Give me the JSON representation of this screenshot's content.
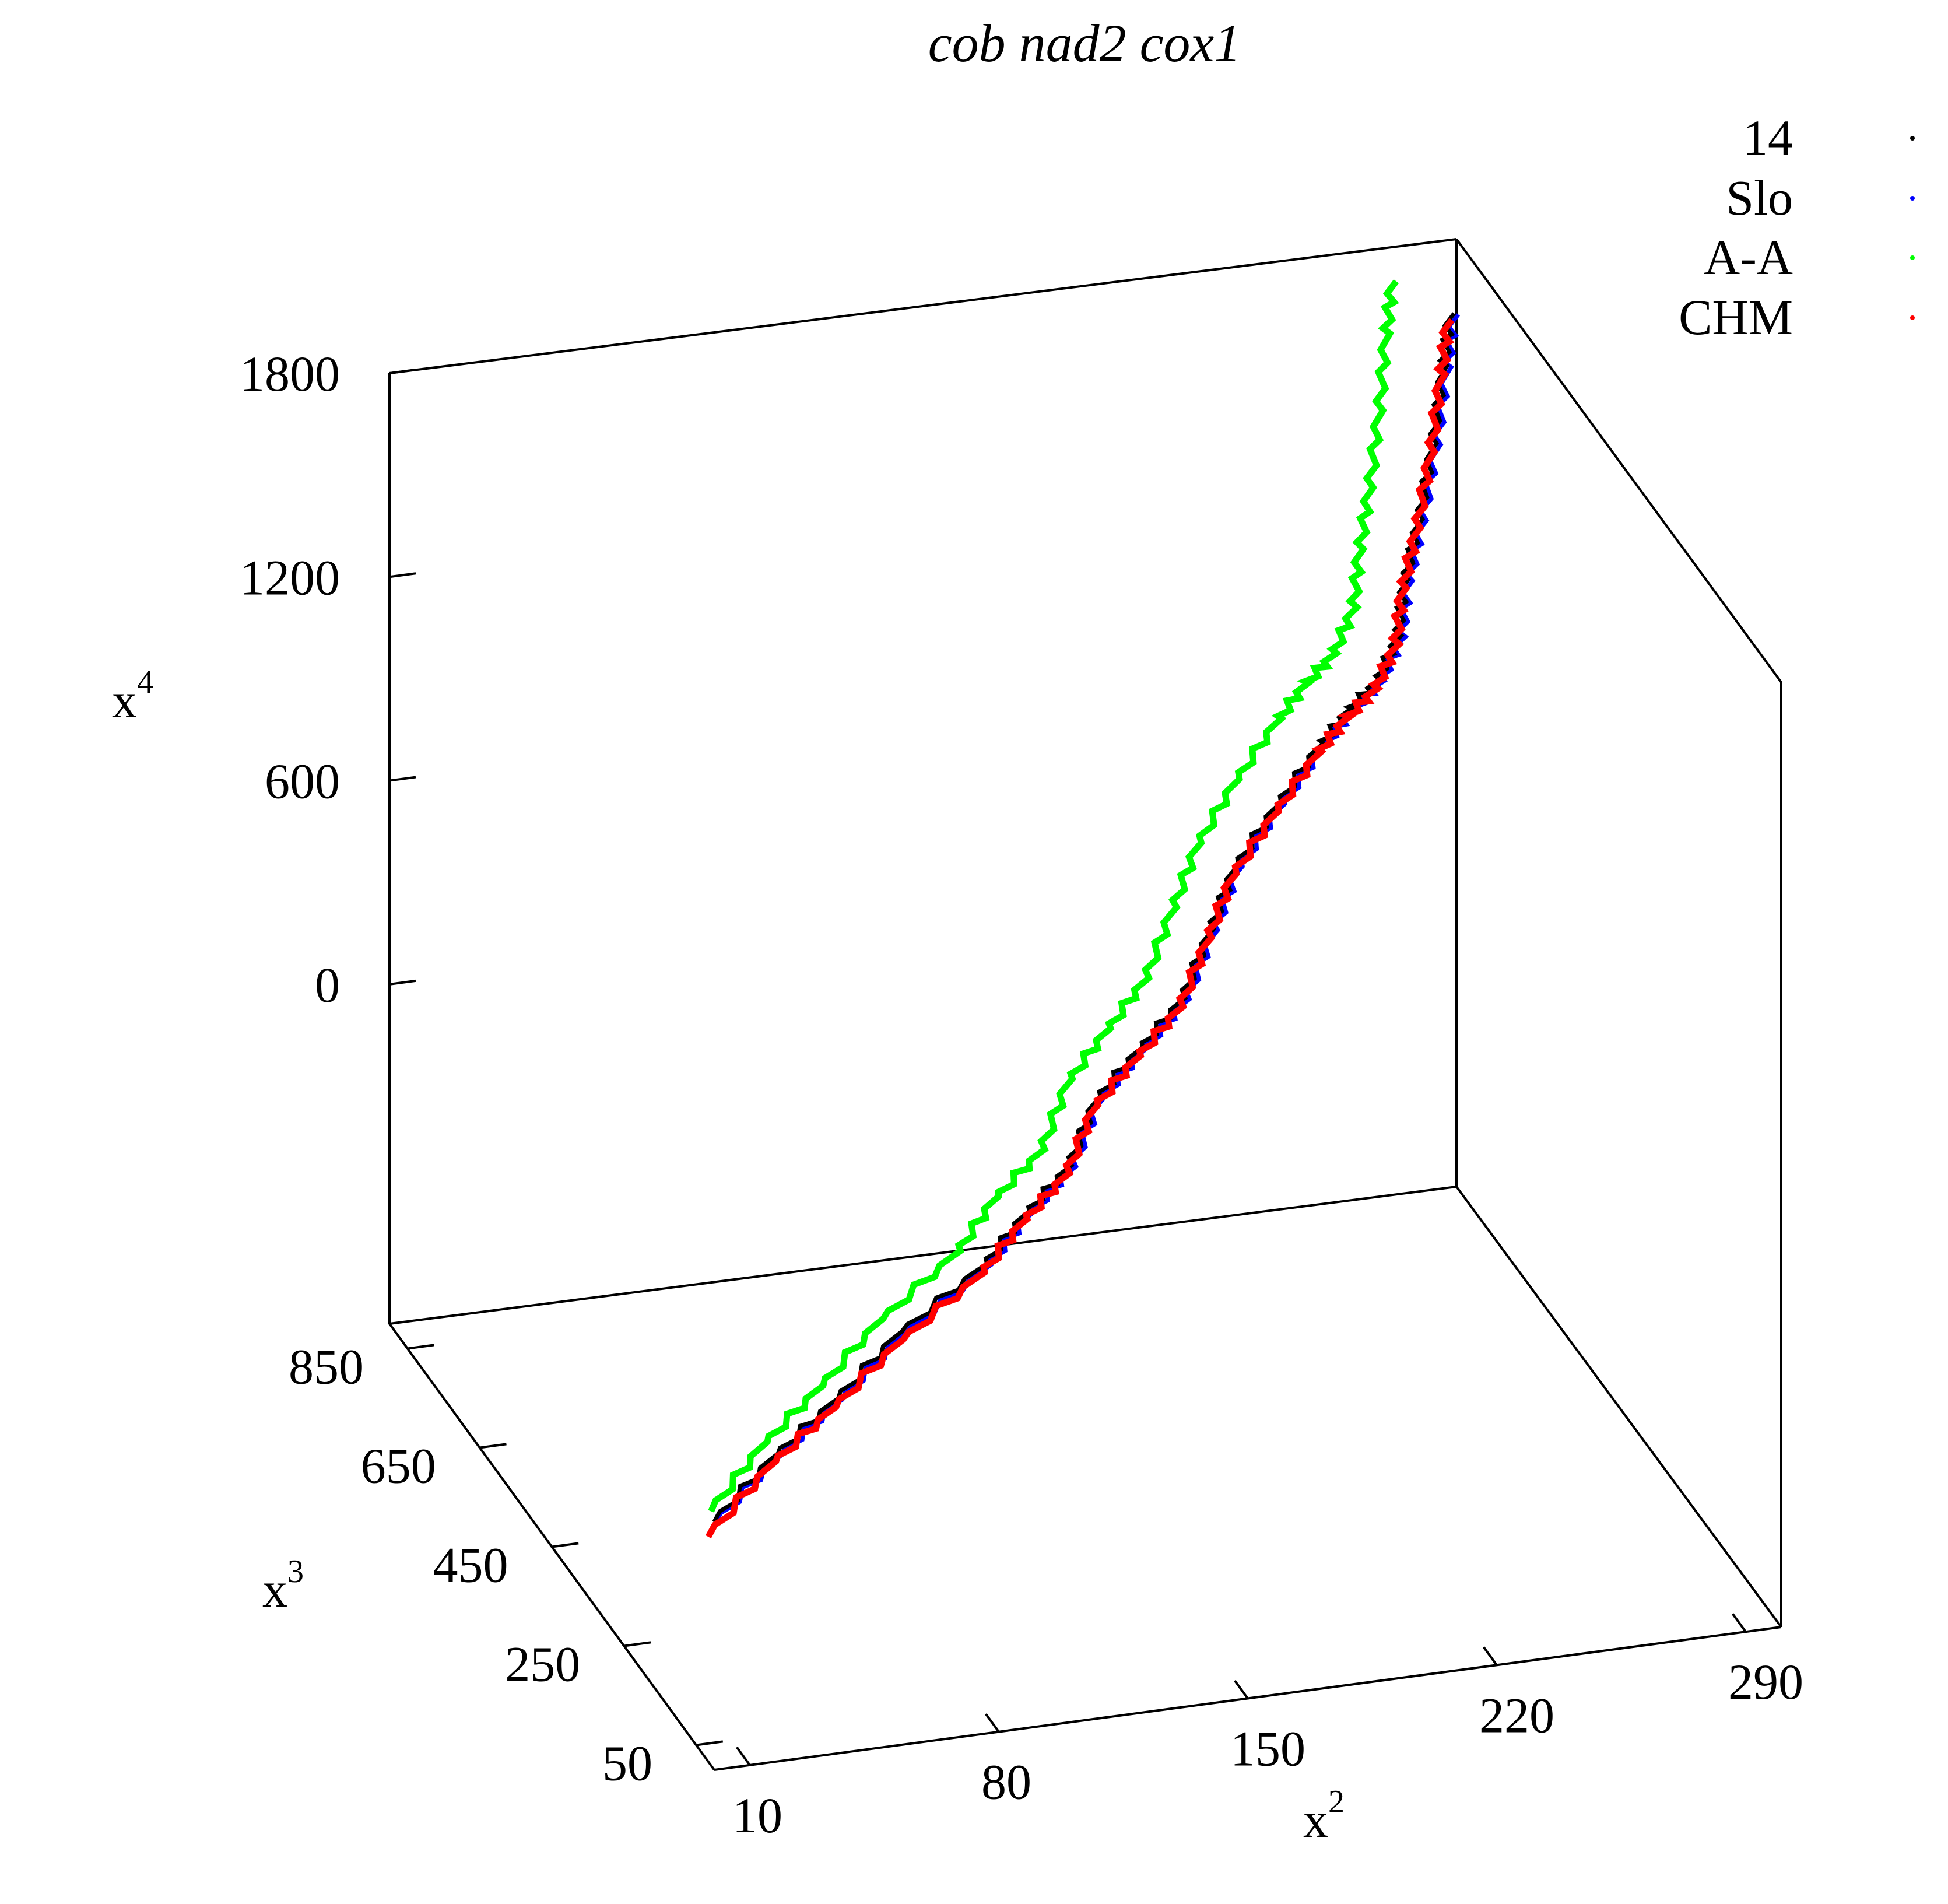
{
  "chart_data": {
    "type": "line",
    "projection": "3d",
    "title": "cob nad2 cox1",
    "axes": {
      "x": {
        "label_base": "x",
        "label_sup": "2",
        "ticks": [
          10,
          80,
          150,
          220,
          290
        ],
        "range": [
          0,
          300
        ]
      },
      "y": {
        "label_base": "x",
        "label_sup": "3",
        "ticks": [
          50,
          250,
          450,
          650,
          850
        ],
        "range": [
          0,
          900
        ]
      },
      "z": {
        "label_base": "x",
        "label_sup": "4",
        "ticks": [
          0,
          600,
          1200,
          1800
        ],
        "range": [
          -1000,
          1800
        ]
      }
    },
    "legend": {
      "position": "top-right",
      "entries": [
        {
          "label": "14",
          "color": "#000000"
        },
        {
          "label": "Slo",
          "color": "#0000ff"
        },
        {
          "label": "A-A",
          "color": "#00ff00"
        },
        {
          "label": "CHM",
          "color": "#ff0000"
        }
      ]
    },
    "series": [
      {
        "label": "14",
        "color": "#000000",
        "points": [
          [
            5,
            50,
            -350
          ],
          [
            30,
            130,
            -310
          ],
          [
            55,
            210,
            -300
          ],
          [
            80,
            280,
            -240
          ],
          [
            110,
            340,
            -170
          ],
          [
            125,
            370,
            -80
          ],
          [
            140,
            400,
            -10
          ],
          [
            150,
            420,
            150
          ],
          [
            165,
            450,
            230
          ],
          [
            180,
            480,
            310
          ],
          [
            190,
            500,
            470
          ],
          [
            200,
            530,
            600
          ],
          [
            215,
            560,
            720
          ],
          [
            230,
            590,
            830
          ],
          [
            240,
            610,
            890
          ],
          [
            250,
            630,
            930
          ],
          [
            258,
            650,
            1020
          ],
          [
            262,
            670,
            1150
          ],
          [
            268,
            690,
            1290
          ],
          [
            275,
            720,
            1460
          ],
          [
            282,
            760,
            1620
          ],
          [
            286,
            780,
            1740
          ]
        ]
      },
      {
        "label": "Slo",
        "color": "#0000ff",
        "points": [
          [
            5,
            48,
            -352
          ],
          [
            31,
            128,
            -312
          ],
          [
            56,
            208,
            -302
          ],
          [
            81,
            278,
            -242
          ],
          [
            111,
            338,
            -172
          ],
          [
            126,
            368,
            -82
          ],
          [
            141,
            398,
            -12
          ],
          [
            151,
            418,
            148
          ],
          [
            166,
            448,
            228
          ],
          [
            181,
            478,
            308
          ],
          [
            191,
            498,
            468
          ],
          [
            201,
            528,
            598
          ],
          [
            216,
            558,
            718
          ],
          [
            231,
            588,
            828
          ],
          [
            241,
            608,
            888
          ],
          [
            251,
            628,
            928
          ],
          [
            259,
            648,
            1018
          ],
          [
            263,
            668,
            1148
          ],
          [
            269,
            688,
            1288
          ],
          [
            276,
            718,
            1458
          ],
          [
            283,
            758,
            1618
          ],
          [
            287,
            778,
            1738
          ]
        ]
      },
      {
        "label": "A-A",
        "color": "#00ff00",
        "points": [
          [
            5,
            58,
            -330
          ],
          [
            28,
            140,
            -288
          ],
          [
            52,
            222,
            -276
          ],
          [
            76,
            292,
            -214
          ],
          [
            104,
            354,
            -144
          ],
          [
            118,
            386,
            -50
          ],
          [
            134,
            416,
            22
          ],
          [
            144,
            438,
            184
          ],
          [
            158,
            470,
            266
          ],
          [
            172,
            502,
            348
          ],
          [
            182,
            524,
            510
          ],
          [
            192,
            554,
            642
          ],
          [
            206,
            586,
            764
          ],
          [
            221,
            618,
            874
          ],
          [
            231,
            640,
            934
          ],
          [
            241,
            662,
            974
          ],
          [
            249,
            684,
            1066
          ],
          [
            253,
            706,
            1200
          ],
          [
            258,
            728,
            1342
          ],
          [
            264,
            760,
            1514
          ],
          [
            270,
            800,
            1674
          ],
          [
            274,
            822,
            1790
          ]
        ]
      },
      {
        "label": "CHM",
        "color": "#ff0000",
        "points": [
          [
            3,
            46,
            -385
          ],
          [
            29,
            126,
            -326
          ],
          [
            54,
            206,
            -318
          ],
          [
            80,
            276,
            -258
          ],
          [
            109,
            336,
            -188
          ],
          [
            124,
            366,
            -96
          ],
          [
            139,
            396,
            -26
          ],
          [
            149,
            416,
            132
          ],
          [
            164,
            446,
            212
          ],
          [
            179,
            476,
            292
          ],
          [
            189,
            496,
            452
          ],
          [
            199,
            526,
            582
          ],
          [
            214,
            556,
            702
          ],
          [
            229,
            586,
            812
          ],
          [
            239,
            606,
            872
          ],
          [
            249,
            626,
            912
          ],
          [
            257,
            646,
            1002
          ],
          [
            261,
            666,
            1132
          ],
          [
            267,
            686,
            1272
          ],
          [
            274,
            716,
            1442
          ],
          [
            281,
            756,
            1602
          ],
          [
            285,
            776,
            1728
          ]
        ]
      }
    ]
  }
}
